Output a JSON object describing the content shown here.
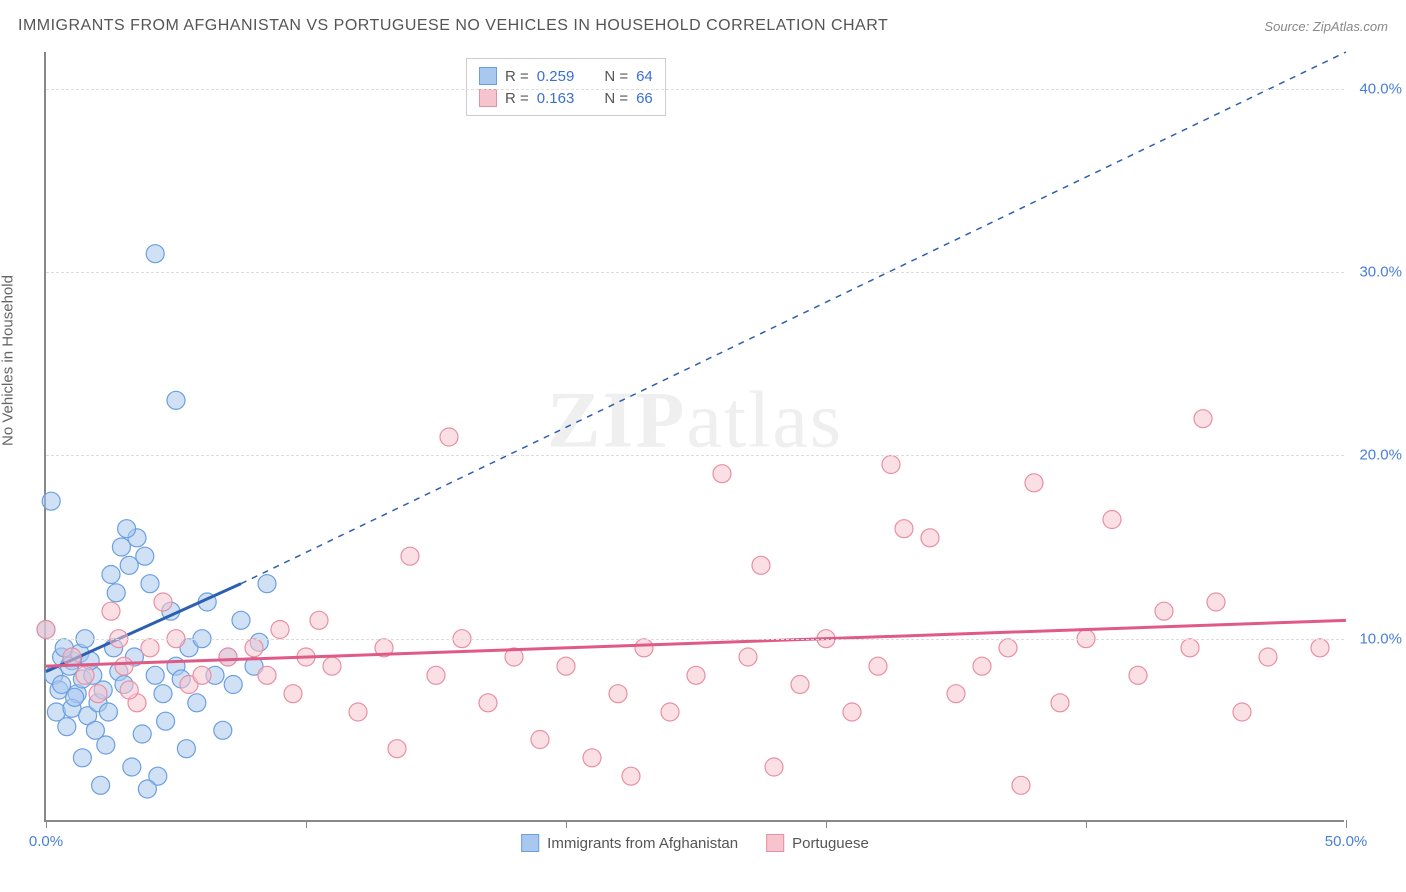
{
  "title": "IMMIGRANTS FROM AFGHANISTAN VS PORTUGUESE NO VEHICLES IN HOUSEHOLD CORRELATION CHART",
  "source_label": "Source:",
  "source_name": "ZipAtlas.com",
  "watermark": {
    "bold": "ZIP",
    "rest": "atlas"
  },
  "y_axis_title": "No Vehicles in Household",
  "chart": {
    "type": "scatter",
    "xlim": [
      0,
      50
    ],
    "ylim": [
      0,
      42
    ],
    "x_ticks": [
      0,
      10,
      20,
      30,
      40,
      50
    ],
    "x_tick_labels": [
      "0.0%",
      "",
      "",
      "",
      "",
      "50.0%"
    ],
    "y_ticks": [
      10,
      20,
      30,
      40
    ],
    "y_tick_labels": [
      "10.0%",
      "20.0%",
      "30.0%",
      "40.0%"
    ],
    "grid_color": "#dddddd",
    "axis_color": "#888888",
    "background_color": "#ffffff"
  },
  "series": [
    {
      "name": "Immigrants from Afghanistan",
      "color_fill": "#a9c8ef",
      "color_stroke": "#6b9fe0",
      "color_line": "#2d5fb0",
      "marker_radius": 9,
      "fill_opacity": 0.55,
      "R": "0.259",
      "N": "64",
      "trend_solid": {
        "x1": 0,
        "y1": 8.2,
        "x2": 7.5,
        "y2": 13.0
      },
      "trend_dash": {
        "x1": 7.5,
        "y1": 13.0,
        "x2": 50,
        "y2": 42
      },
      "points": [
        [
          0.3,
          8.0
        ],
        [
          0.5,
          7.2
        ],
        [
          0.4,
          6.0
        ],
        [
          0.6,
          9.0
        ],
        [
          0.8,
          5.2
        ],
        [
          1.0,
          8.8
        ],
        [
          1.2,
          7.0
        ],
        [
          1.0,
          6.2
        ],
        [
          0.7,
          9.5
        ],
        [
          1.4,
          7.8
        ],
        [
          1.6,
          5.8
        ],
        [
          0.9,
          8.5
        ],
        [
          1.1,
          6.8
        ],
        [
          1.3,
          9.2
        ],
        [
          1.8,
          8.0
        ],
        [
          2.0,
          6.5
        ],
        [
          0.6,
          7.5
        ],
        [
          1.5,
          10.0
        ],
        [
          2.2,
          7.2
        ],
        [
          1.7,
          8.8
        ],
        [
          2.4,
          6.0
        ],
        [
          2.6,
          9.5
        ],
        [
          1.9,
          5.0
        ],
        [
          2.8,
          8.2
        ],
        [
          3.0,
          7.5
        ],
        [
          2.5,
          13.5
        ],
        [
          3.2,
          14.0
        ],
        [
          2.9,
          15.0
        ],
        [
          3.5,
          15.5
        ],
        [
          3.1,
          16.0
        ],
        [
          3.8,
          14.5
        ],
        [
          2.7,
          12.5
        ],
        [
          4.0,
          13.0
        ],
        [
          3.4,
          9.0
        ],
        [
          4.2,
          8.0
        ],
        [
          4.5,
          7.0
        ],
        [
          4.8,
          11.5
        ],
        [
          5.0,
          8.5
        ],
        [
          5.5,
          9.5
        ],
        [
          5.2,
          7.8
        ],
        [
          5.8,
          6.5
        ],
        [
          6.0,
          10.0
        ],
        [
          6.5,
          8.0
        ],
        [
          6.2,
          12.0
        ],
        [
          7.0,
          9.0
        ],
        [
          7.5,
          11.0
        ],
        [
          7.2,
          7.5
        ],
        [
          8.0,
          8.5
        ],
        [
          8.5,
          13.0
        ],
        [
          8.2,
          9.8
        ],
        [
          4.6,
          5.5
        ],
        [
          3.7,
          4.8
        ],
        [
          2.3,
          4.2
        ],
        [
          1.4,
          3.5
        ],
        [
          3.3,
          3.0
        ],
        [
          5.4,
          4.0
        ],
        [
          6.8,
          5.0
        ],
        [
          4.3,
          2.5
        ],
        [
          2.1,
          2.0
        ],
        [
          3.9,
          1.8
        ],
        [
          5.0,
          23.0
        ],
        [
          4.2,
          31.0
        ],
        [
          0.2,
          17.5
        ],
        [
          0.0,
          10.5
        ]
      ]
    },
    {
      "name": "Portuguese",
      "color_fill": "#f5c4ce",
      "color_stroke": "#e98fa3",
      "color_line": "#e05a88",
      "marker_radius": 9,
      "fill_opacity": 0.55,
      "R": "0.163",
      "N": "66",
      "trend_solid": {
        "x1": 0,
        "y1": 8.5,
        "x2": 50,
        "y2": 11.0
      },
      "trend_dash": null,
      "points": [
        [
          0.0,
          10.5
        ],
        [
          1.0,
          9.0
        ],
        [
          1.5,
          8.0
        ],
        [
          2.0,
          7.0
        ],
        [
          2.5,
          11.5
        ],
        [
          3.0,
          8.5
        ],
        [
          3.5,
          6.5
        ],
        [
          4.0,
          9.5
        ],
        [
          4.5,
          12.0
        ],
        [
          5.0,
          10.0
        ],
        [
          5.5,
          7.5
        ],
        [
          6.0,
          8.0
        ],
        [
          2.8,
          10.0
        ],
        [
          3.2,
          7.2
        ],
        [
          7.0,
          9.0
        ],
        [
          8.0,
          9.5
        ],
        [
          8.5,
          8.0
        ],
        [
          9.0,
          10.5
        ],
        [
          9.5,
          7.0
        ],
        [
          10.0,
          9.0
        ],
        [
          10.5,
          11.0
        ],
        [
          11.0,
          8.5
        ],
        [
          12.0,
          6.0
        ],
        [
          13.0,
          9.5
        ],
        [
          13.5,
          4.0
        ],
        [
          14.0,
          14.5
        ],
        [
          15.0,
          8.0
        ],
        [
          16.0,
          10.0
        ],
        [
          17.0,
          6.5
        ],
        [
          18.0,
          9.0
        ],
        [
          15.5,
          21.0
        ],
        [
          19.0,
          4.5
        ],
        [
          20.0,
          8.5
        ],
        [
          21.0,
          3.5
        ],
        [
          22.0,
          7.0
        ],
        [
          22.5,
          2.5
        ],
        [
          23.0,
          9.5
        ],
        [
          24.0,
          6.0
        ],
        [
          25.0,
          8.0
        ],
        [
          26.0,
          19.0
        ],
        [
          27.0,
          9.0
        ],
        [
          28.0,
          3.0
        ],
        [
          27.5,
          14.0
        ],
        [
          29.0,
          7.5
        ],
        [
          30.0,
          10.0
        ],
        [
          31.0,
          6.0
        ],
        [
          32.0,
          8.5
        ],
        [
          33.0,
          16.0
        ],
        [
          34.0,
          15.5
        ],
        [
          35.0,
          7.0
        ],
        [
          32.5,
          19.5
        ],
        [
          36.0,
          8.5
        ],
        [
          37.0,
          9.5
        ],
        [
          38.0,
          18.5
        ],
        [
          39.0,
          6.5
        ],
        [
          37.5,
          2.0
        ],
        [
          40.0,
          10.0
        ],
        [
          41.0,
          16.5
        ],
        [
          42.0,
          8.0
        ],
        [
          43.0,
          11.5
        ],
        [
          44.0,
          9.5
        ],
        [
          45.0,
          12.0
        ],
        [
          46.0,
          6.0
        ],
        [
          47.0,
          9.0
        ],
        [
          44.5,
          22.0
        ],
        [
          49.0,
          9.5
        ]
      ]
    }
  ],
  "legend_bottom": [
    {
      "label": "Immigrants from Afghanistan",
      "fill": "#a9c8ef",
      "stroke": "#6b9fe0"
    },
    {
      "label": "Portuguese",
      "fill": "#f5c4ce",
      "stroke": "#e98fa3"
    }
  ]
}
